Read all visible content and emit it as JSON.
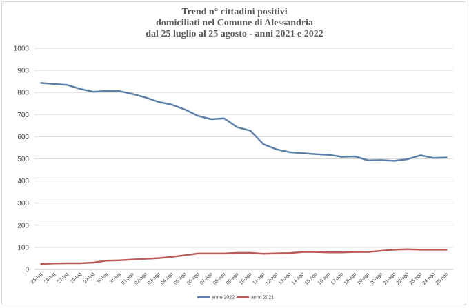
{
  "chart_data": {
    "type": "line",
    "title_lines": [
      "Trend n° cittadini positivi",
      "domiciliati nel Comune di Alessandria",
      "dal 25 luglio al 25 agosto - anni 2021 e 2022"
    ],
    "xlabel": "",
    "ylabel": "",
    "ylim": [
      0,
      1000
    ],
    "yticks": [
      0,
      100,
      200,
      300,
      400,
      500,
      600,
      700,
      800,
      900,
      1000
    ],
    "grid": true,
    "legend_position": "bottom",
    "x": [
      "25-lug",
      "26-lug",
      "27-lug",
      "28-lug",
      "29-lug",
      "30-lug",
      "31-lug",
      "01-ago",
      "02-ago",
      "03-ago",
      "04-ago",
      "05-ago",
      "06-ago",
      "07-ago",
      "08-ago",
      "09-ago",
      "10-ago",
      "11-ago",
      "12-ago",
      "13-ago",
      "14-ago",
      "15-ago",
      "16-ago",
      "17-ago",
      "18-ago",
      "19-ago",
      "20-ago",
      "21-ago",
      "22-ago",
      "23-ago",
      "24-ago",
      "25-ago"
    ],
    "series": [
      {
        "name": "anno 2022",
        "color": "#5b7fa8",
        "values": [
          843,
          838,
          834,
          816,
          803,
          807,
          806,
          793,
          777,
          757,
          745,
          723,
          694,
          679,
          683,
          643,
          627,
          566,
          543,
          530,
          526,
          521,
          518,
          509,
          511,
          493,
          494,
          491,
          498,
          516,
          504,
          506
        ]
      },
      {
        "name": "anno 2021",
        "color": "#b85c5a",
        "values": [
          25,
          27,
          28,
          28,
          31,
          40,
          41,
          45,
          48,
          51,
          57,
          64,
          72,
          72,
          72,
          75,
          75,
          71,
          73,
          74,
          79,
          79,
          77,
          77,
          79,
          79,
          84,
          89,
          91,
          89,
          89,
          89
        ]
      }
    ]
  }
}
